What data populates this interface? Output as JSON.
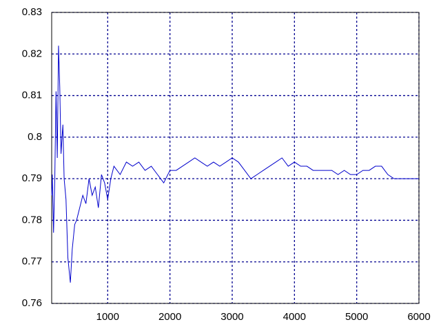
{
  "chart_data": {
    "type": "line",
    "x": [
      100,
      110,
      130,
      150,
      170,
      190,
      210,
      230,
      250,
      280,
      300,
      330,
      360,
      400,
      430,
      470,
      500,
      550,
      600,
      650,
      700,
      750,
      800,
      850,
      900,
      950,
      1000,
      1050,
      1100,
      1200,
      1300,
      1400,
      1500,
      1600,
      1700,
      1800,
      1900,
      2000,
      2100,
      2200,
      2300,
      2400,
      2500,
      2600,
      2700,
      2800,
      2900,
      3000,
      3100,
      3200,
      3300,
      3400,
      3500,
      3600,
      3700,
      3800,
      3900,
      4000,
      4100,
      4200,
      4300,
      4400,
      4500,
      4600,
      4700,
      4800,
      4900,
      5000,
      5100,
      5200,
      5300,
      5400,
      5500,
      5600,
      5700,
      5800,
      5900,
      6000
    ],
    "values": [
      0.786,
      0.791,
      0.777,
      0.79,
      0.811,
      0.795,
      0.822,
      0.812,
      0.796,
      0.803,
      0.79,
      0.785,
      0.771,
      0.765,
      0.773,
      0.779,
      0.78,
      0.783,
      0.786,
      0.784,
      0.79,
      0.786,
      0.788,
      0.783,
      0.791,
      0.789,
      0.785,
      0.79,
      0.793,
      0.791,
      0.794,
      0.793,
      0.794,
      0.792,
      0.793,
      0.791,
      0.789,
      0.792,
      0.792,
      0.793,
      0.794,
      0.795,
      0.794,
      0.793,
      0.794,
      0.793,
      0.794,
      0.795,
      0.794,
      0.792,
      0.79,
      0.791,
      0.792,
      0.793,
      0.794,
      0.795,
      0.793,
      0.794,
      0.793,
      0.793,
      0.792,
      0.792,
      0.792,
      0.792,
      0.791,
      0.792,
      0.791,
      0.791,
      0.792,
      0.792,
      0.793,
      0.793,
      0.791,
      0.79,
      0.79,
      0.79,
      0.79,
      0.79
    ],
    "color": "#0000cc",
    "xlim": [
      100,
      6000
    ],
    "xticks": [
      1000,
      2000,
      3000,
      4000,
      5000,
      6000
    ],
    "ylim": [
      0.76,
      0.83
    ],
    "yticks": [
      0.76,
      0.77,
      0.78,
      0.79,
      0.8,
      0.81,
      0.82,
      0.83
    ],
    "grid": true
  }
}
